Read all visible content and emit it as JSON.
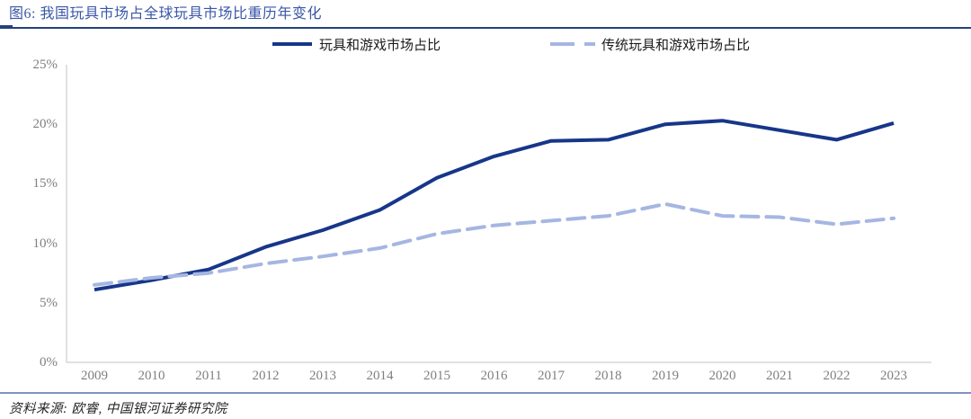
{
  "title": "图6: 我国玩具市场占全球玩具市场比重历年变化",
  "legend": {
    "items": [
      {
        "label": "玩具和游戏市场占比",
        "style": "solid",
        "color": "#17368a"
      },
      {
        "label": "传统玩具和游戏市场占比",
        "style": "dashed",
        "color": "#a6b6e2"
      }
    ]
  },
  "source": "资料来源: 欧睿, 中国银河证券研究院",
  "colors": {
    "title": "#3a57a8",
    "top_rule": "#24427c",
    "bottom_rule": "#8092c6",
    "axis": "#c3c3c3",
    "tick_text": "#7f7f7f",
    "series_solid": "#17368a",
    "series_dashed": "#a6b6e2"
  },
  "chart_data": {
    "type": "line",
    "x": [
      2009,
      2010,
      2011,
      2012,
      2013,
      2014,
      2015,
      2016,
      2017,
      2018,
      2019,
      2020,
      2021,
      2022,
      2023
    ],
    "series": [
      {
        "name": "玩具和游戏市场占比",
        "style": "solid",
        "color": "#17368a",
        "values": [
          6.1,
          6.9,
          7.8,
          9.7,
          11.1,
          12.8,
          15.5,
          17.3,
          18.6,
          18.7,
          20.0,
          20.3,
          19.5,
          18.7,
          20.1
        ]
      },
      {
        "name": "传统玩具和游戏市场占比",
        "style": "dashed",
        "color": "#a6b6e2",
        "values": [
          6.5,
          7.1,
          7.5,
          8.3,
          8.9,
          9.6,
          10.8,
          11.5,
          11.9,
          12.3,
          13.3,
          12.3,
          12.2,
          11.6,
          12.1
        ]
      }
    ],
    "title": "我国玩具市场占全球玩具市场比重历年变化",
    "xlabel": "",
    "ylabel": "",
    "ylim": [
      0,
      25
    ],
    "yticks": [
      "0%",
      "5%",
      "10%",
      "15%",
      "20%",
      "25%"
    ],
    "grid": false,
    "legend_position": "top"
  }
}
